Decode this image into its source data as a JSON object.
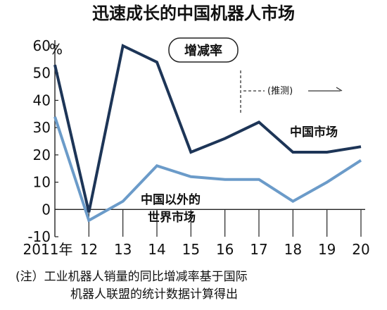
{
  "chart_data": {
    "type": "line",
    "title": "迅速成长的中国机器人市场",
    "unit": "%",
    "badge": "增减率",
    "forecast_label": "(推测)",
    "categories": [
      "2011年",
      "12",
      "13",
      "14",
      "15",
      "16",
      "17",
      "18",
      "19",
      "20"
    ],
    "x": [
      2011,
      2012,
      2013,
      2014,
      2015,
      2016,
      2017,
      2018,
      2019,
      2020
    ],
    "ylim": [
      -10,
      60
    ],
    "yticks": [
      -10,
      0,
      10,
      20,
      30,
      40,
      50,
      60
    ],
    "grid": false,
    "series": [
      {
        "name": "中国市场",
        "color": "#1d3557",
        "values": [
          53,
          -1,
          60,
          54,
          21,
          26,
          32,
          21,
          21,
          23
        ]
      },
      {
        "name_lines": [
          "中国以外的",
          "世界市场"
        ],
        "color": "#6b9bc9",
        "values": [
          34,
          -4,
          3,
          16,
          12,
          11,
          11,
          3,
          10,
          18
        ]
      }
    ],
    "note_lines": [
      "(注）工业机器人销量的同比增减率基于国际",
      "机器人联盟的统计数据计算得出"
    ]
  }
}
